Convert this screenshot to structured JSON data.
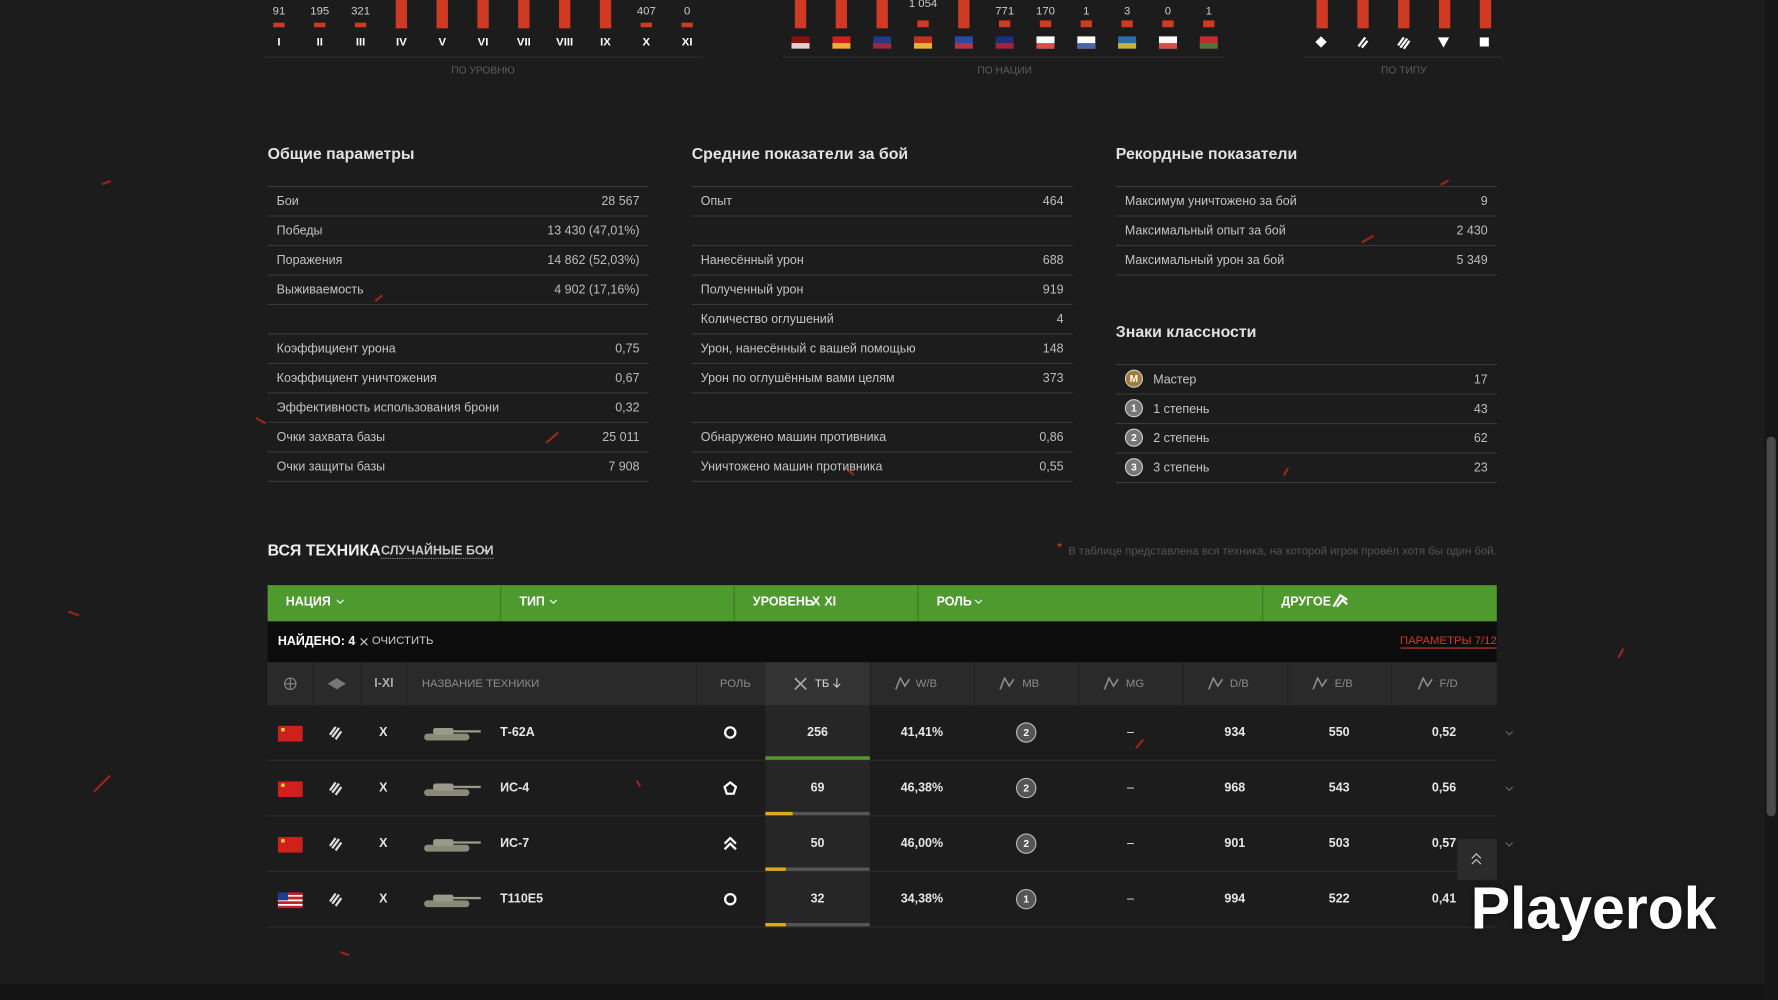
{
  "top_strip": {
    "levels": {
      "caption": "ПО УРОВНЮ",
      "labels": [
        "I",
        "II",
        "III",
        "IV",
        "V",
        "VI",
        "VII",
        "VIII",
        "IX",
        "X",
        "XI"
      ],
      "values": [
        "91",
        "195",
        "321",
        null,
        null,
        null,
        null,
        null,
        null,
        "407",
        "0"
      ]
    },
    "nations": {
      "caption": "ПО НАЦИИ",
      "values": [
        null,
        null,
        null,
        "1 054",
        null,
        "771",
        "170",
        "1",
        "3",
        "0",
        "1"
      ]
    },
    "types": {
      "caption": "ПО ТИПУ"
    }
  },
  "general": {
    "title": "Общие параметры",
    "groups": [
      [
        [
          "Бои",
          "28 567"
        ],
        [
          "Победы",
          "13 430 (47,01%)"
        ],
        [
          "Поражения",
          "14 862 (52,03%)"
        ],
        [
          "Выживаемость",
          "4 902 (17,16%)"
        ]
      ],
      [
        [
          "Коэффициент урона",
          "0,75"
        ],
        [
          "Коэффициент уничтожения",
          "0,67"
        ],
        [
          "Эффективность использования брони",
          "0,32"
        ],
        [
          "Очки захвата базы",
          "25 011"
        ],
        [
          "Очки защиты базы",
          "7 908"
        ]
      ]
    ]
  },
  "averages": {
    "title": "Средние показатели за бой",
    "groups": [
      [
        [
          "Опыт",
          "464"
        ]
      ],
      [
        [
          "Нанесённый урон",
          "688"
        ],
        [
          "Полученный урон",
          "919"
        ],
        [
          "Количество оглушений",
          "4"
        ],
        [
          "Урон, нанесённый с вашей помощью",
          "148"
        ],
        [
          "Урон по оглушённым вами целям",
          "373"
        ]
      ],
      [
        [
          "Обнаружено машин противника",
          "0,86"
        ],
        [
          "Уничтожено машин противника",
          "0,55"
        ]
      ]
    ]
  },
  "records": {
    "title": "Рекордные показатели",
    "groups": [
      [
        [
          "Максимум уничтожено за бой",
          "9"
        ],
        [
          "Максимальный опыт за бой",
          "2 430"
        ],
        [
          "Максимальный урон за бой",
          "5 349"
        ]
      ]
    ]
  },
  "class_marks": {
    "title": "Знаки классности",
    "rows": [
      {
        "badge": "M",
        "label": "Мастер",
        "value": "17"
      },
      {
        "badge": "1",
        "label": "1 степень",
        "value": "43"
      },
      {
        "badge": "2",
        "label": "2 степень",
        "value": "62"
      },
      {
        "badge": "3",
        "label": "3 степень",
        "value": "23"
      }
    ]
  },
  "vehicles": {
    "title": "ВСЯ ТЕХНИКА",
    "mode": "СЛУЧАЙНЫЕ БОИ",
    "note_mark": "*",
    "note": "В таблице представлена вся техника, на которой игрок провёл хотя бы один бой.",
    "filters": {
      "nation": "НАЦИЯ",
      "type": "ТИП",
      "level": "УРОВЕНЬ",
      "level_values": [
        "X",
        "XI"
      ],
      "role": "РОЛЬ",
      "other": "ДРУГОЕ"
    },
    "found": "НАЙДЕНО: 4",
    "clear": "ОЧИСТИТЬ",
    "params": "ПАРАМЕТРЫ 7/12",
    "columns": {
      "tier": "I-XI",
      "name": "НАЗВАНИЕ ТЕХНИКИ",
      "role": "РОЛЬ",
      "battles": "ТБ",
      "wb": "W/B",
      "mb": "MB",
      "mg": "MG",
      "db": "D/B",
      "eb": "E/B",
      "fd": "F/D"
    },
    "rows": [
      {
        "tier": "X",
        "name": "Т-62А",
        "battles": "256",
        "wb": "41,41%",
        "mastery": "2",
        "mg": "–",
        "db": "934",
        "eb": "550",
        "fd": "0,52"
      },
      {
        "tier": "X",
        "name": "ИС-4",
        "battles": "69",
        "wb": "46,38%",
        "mastery": "2",
        "mg": "–",
        "db": "968",
        "eb": "543",
        "fd": "0,56"
      },
      {
        "tier": "X",
        "name": "ИС-7",
        "battles": "50",
        "wb": "46,00%",
        "mastery": "2",
        "mg": "–",
        "db": "901",
        "eb": "503",
        "fd": "0,57"
      },
      {
        "tier": "X",
        "name": "T110E5",
        "battles": "32",
        "wb": "34,38%",
        "mastery": "1",
        "mg": "–",
        "db": "994",
        "eb": "522",
        "fd": "0,41"
      }
    ]
  },
  "watermark": "Playerok"
}
